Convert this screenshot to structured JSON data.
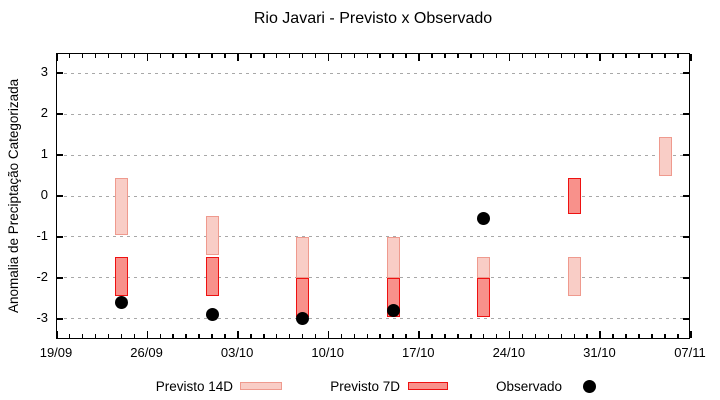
{
  "title": "Rio Javari - Previsto x Observado",
  "axes": {
    "y": {
      "label": "Anomalia de Preciptação Categorizada",
      "tick_values": [
        3,
        2,
        1,
        0,
        -1,
        -2,
        -3
      ],
      "min": -3.5,
      "max": 3.5
    },
    "x": {
      "tick_labels": [
        "19/09",
        "26/09",
        "03/10",
        "10/10",
        "17/10",
        "24/10",
        "31/10",
        "07/11"
      ],
      "days_total": 49,
      "major_tick_every_days": 7,
      "minor_tick_every_days": 1
    }
  },
  "legend": {
    "items": [
      {
        "label": "Previsto 14D",
        "swatch": "range-bar-14d"
      },
      {
        "label": "Previsto 7D",
        "swatch": "range-bar-7d"
      },
      {
        "label": "Observado",
        "swatch": "dot"
      }
    ]
  },
  "colors": {
    "previsto14_fill": "#f9cdc6",
    "previsto14_stroke": "#ef9a8e",
    "previsto7_fill": "#f8918b",
    "previsto7_stroke": "#ee1111",
    "observado": "#000000",
    "grid": "#a8a8a8",
    "axis": "#000000",
    "background": "#ffffff"
  },
  "chart_data": {
    "type": "bar",
    "subtype": "range-bars-with-scatter",
    "title": "Rio Javari - Previsto x Observado",
    "xlabel": "",
    "ylabel": "Anomalia de Preciptação Categorizada",
    "ylim": [
      -3.5,
      3.5
    ],
    "grid": "horizontal-dashed",
    "legend_position": "bottom",
    "x_tick_labels": [
      "19/09",
      "26/09",
      "03/10",
      "10/10",
      "17/10",
      "24/10",
      "31/10",
      "07/11"
    ],
    "series_names": [
      "Previsto 14D",
      "Previsto 7D",
      "Observado"
    ],
    "groups": [
      {
        "date": "24/09",
        "day": 5,
        "previsto_14d": [
          0.45,
          -0.95
        ],
        "previsto_7d": [
          -1.5,
          -2.45
        ],
        "observado": -2.6
      },
      {
        "date": "01/10",
        "day": 12,
        "previsto_14d": [
          -0.5,
          -1.45
        ],
        "previsto_7d": [
          -1.5,
          -2.45
        ],
        "observado": -2.9
      },
      {
        "date": "08/10",
        "day": 19,
        "previsto_14d": [
          -1.0,
          -2.0
        ],
        "previsto_7d": [
          -2.0,
          -2.95
        ],
        "observado": -3.0
      },
      {
        "date": "15/10",
        "day": 26,
        "previsto_14d": [
          -1.0,
          -2.0
        ],
        "previsto_7d": [
          -2.0,
          -2.95
        ],
        "observado": -2.8
      },
      {
        "date": "22/10",
        "day": 33,
        "previsto_14d": [
          -1.5,
          -2.0
        ],
        "previsto_7d": [
          -2.0,
          -2.95
        ],
        "observado": -0.55
      },
      {
        "date": "29/10",
        "day": 40,
        "previsto_14d": [
          -1.5,
          -2.45
        ],
        "previsto_7d": [
          0.45,
          -0.45
        ],
        "observado": null
      },
      {
        "date": "05/11",
        "day": 47,
        "previsto_14d": [
          1.45,
          0.5
        ],
        "previsto_7d": null,
        "observado": null
      }
    ]
  }
}
